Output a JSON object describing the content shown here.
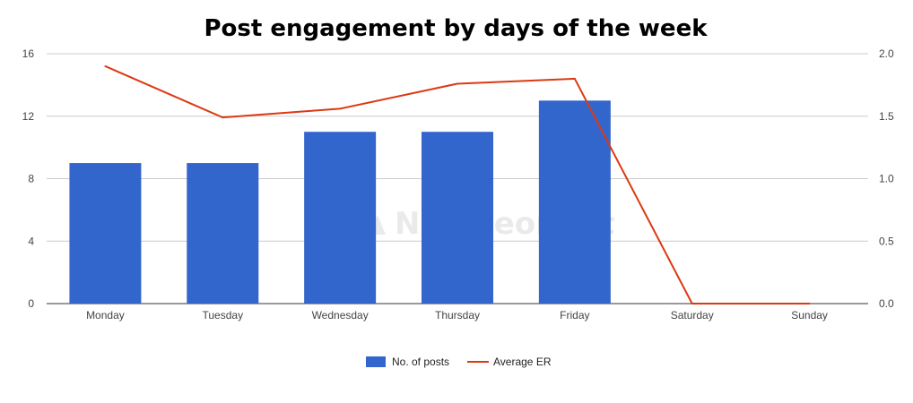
{
  "chart_data": {
    "type": "bar",
    "title": "Post engagement by days of the week",
    "categories": [
      "Monday",
      "Tuesday",
      "Wednesday",
      "Thursday",
      "Friday",
      "Saturday",
      "Sunday"
    ],
    "series": [
      {
        "name": "No. of posts",
        "type": "bar",
        "axis": "left",
        "color": "#3366cc",
        "values": [
          9,
          9,
          11,
          11,
          13,
          0,
          0
        ]
      },
      {
        "name": "Average ER",
        "type": "line",
        "axis": "right",
        "color": "#dc3912",
        "values": [
          1.9,
          1.49,
          1.56,
          1.76,
          1.8,
          0,
          0
        ]
      }
    ],
    "y_left": {
      "range": [
        0,
        16
      ],
      "ticks": [
        0,
        4,
        8,
        12,
        16
      ],
      "tick_labels": [
        "0",
        "4",
        "8",
        "12",
        "16"
      ]
    },
    "y_right": {
      "range": [
        0,
        2
      ],
      "ticks": [
        0,
        0.5,
        1,
        1.5,
        2
      ],
      "tick_labels": [
        "0.0",
        "0.5",
        "1.0",
        "1.5",
        "2.0"
      ]
    },
    "grid": true,
    "legend_position": "bottom",
    "watermark": "NapoleonCat",
    "gridline_color": "#cccccc"
  }
}
